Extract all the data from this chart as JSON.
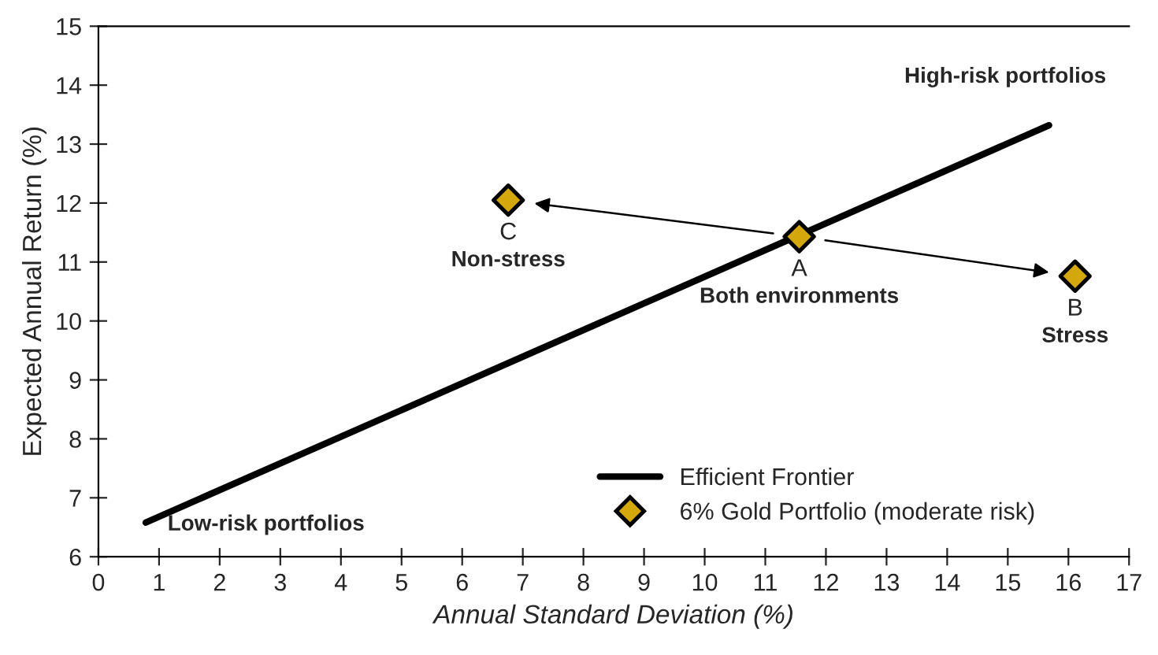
{
  "chart_data": {
    "type": "scatter",
    "xlabel": "Annual Standard Deviation (%)",
    "ylabel": "Expected Annual Return (%)",
    "xlim": [
      0,
      17
    ],
    "xticks": [
      0,
      1,
      2,
      3,
      4,
      5,
      6,
      7,
      8,
      9,
      10,
      11,
      12,
      13,
      14,
      15,
      16,
      17
    ],
    "ylim": [
      6,
      15
    ],
    "yticks": [
      6,
      7,
      8,
      9,
      10,
      11,
      12,
      13,
      14,
      15
    ],
    "grid": false,
    "legend": "bottom right",
    "marker": "diamond",
    "series": [
      {
        "name": "Efficient Frontier",
        "type": "line",
        "color": "#000000",
        "x": [
          0.78,
          15.68
        ],
        "values": [
          6.58,
          13.32
        ],
        "marker": "none",
        "line_style": "solid"
      },
      {
        "name": "6% Gold Portfolio (moderate risk)",
        "color": "#d4a80c",
        "x": [
          11.56,
          16.11,
          6.76
        ],
        "values": [
          11.43,
          10.76,
          12.05
        ]
      }
    ],
    "annotations": [
      {
        "text": "A",
        "x": 11.56,
        "y": 11.43
      },
      {
        "text": "Both environments",
        "x": 11.56,
        "y": 11.43
      },
      {
        "text": "B",
        "x": 16.11,
        "y": 10.76
      },
      {
        "text": "Stress",
        "x": 16.11,
        "y": 10.76
      },
      {
        "text": "C",
        "x": 6.76,
        "y": 12.05
      },
      {
        "text": "Non-stress",
        "x": 6.76,
        "y": 12.05
      },
      {
        "text": "High-risk portfolios",
        "x": 15.68,
        "y": 13.32
      },
      {
        "text": "Low-risk portfolios",
        "x": 0.78,
        "y": 6.58
      }
    ]
  }
}
